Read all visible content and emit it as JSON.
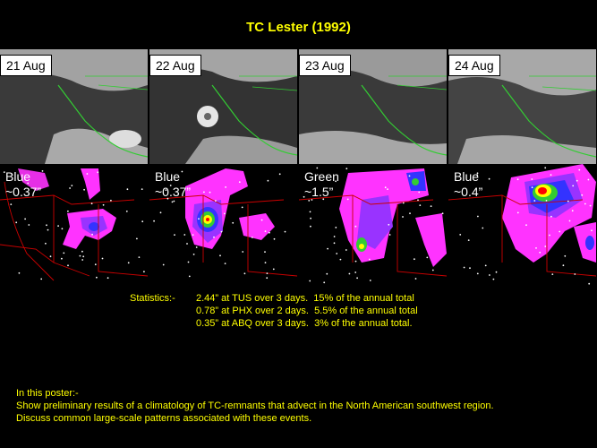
{
  "title": "TC Lester (1992)",
  "panels": [
    {
      "date": "21 Aug",
      "color": "Blue",
      "amount": "~0.37”"
    },
    {
      "date": "22 Aug",
      "color": "Blue",
      "amount": "~0.37”"
    },
    {
      "date": "23 Aug",
      "color": "Green",
      "amount": "~1.5”"
    },
    {
      "date": "24 Aug",
      "color": "Blue",
      "amount": "~0.4”"
    }
  ],
  "statistics": {
    "heading": "Statistics:-",
    "lines": [
      "2.44” at TUS over 3 days.  15% of the annual total",
      "0.78” at PHX over 2 days.  5.5% of the annual total",
      "0.35” at ABQ over 3 days.  3% of the annual total."
    ]
  },
  "poster": {
    "heading": "In this poster:-",
    "lines": [
      "Show preliminary results of a climatology of TC-remnants that advect in the North American southwest region.",
      "Discuss common large-scale patterns associated with these events."
    ]
  },
  "colors": {
    "title": "#ffff00",
    "text": "#ffff00",
    "background": "#000000",
    "coastline": "#33cc33",
    "borders": "#cc0000"
  }
}
